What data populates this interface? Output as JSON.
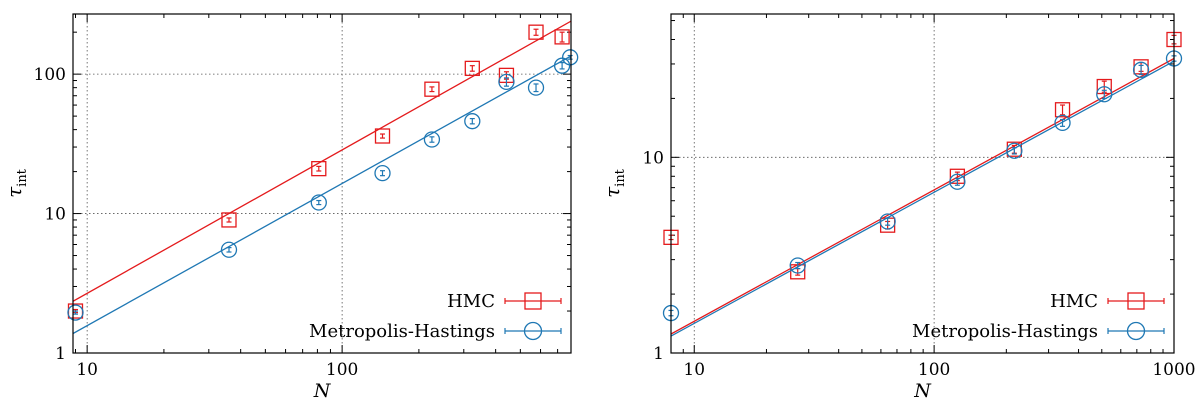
{
  "chart_data": [
    {
      "type": "scatter",
      "title": "",
      "xlabel": "N",
      "ylabel": "τ_int",
      "ylabel_main": "τ",
      "ylabel_sub": "int",
      "xscale": "log",
      "yscale": "log",
      "xlim": [
        8.8,
        790
      ],
      "ylim": [
        1,
        270
      ],
      "xticks": [
        10,
        100
      ],
      "xtick_labels": [
        "10",
        "100"
      ],
      "yticks": [
        1,
        10,
        100
      ],
      "ytick_labels": [
        "1",
        "10",
        "100"
      ],
      "grid": true,
      "legend_position": "bottom-right",
      "series": [
        {
          "name": "HMC",
          "color": "#e41a1c",
          "marker": "square",
          "x": [
            9,
            36,
            81,
            144,
            225,
            324,
            441,
            576,
            729
          ],
          "y": [
            2.0,
            9.0,
            21,
            36,
            78,
            110,
            98,
            200,
            185
          ],
          "err": [
            0.05,
            0.3,
            0.8,
            1.2,
            3,
            5,
            6,
            10,
            15
          ],
          "fit": {
            "x": [
              8.8,
              790
            ],
            "y": [
              2.35,
              240
            ]
          }
        },
        {
          "name": "Metropolis-Hastings",
          "color": "#1f78b4",
          "marker": "circle",
          "x": [
            9,
            36,
            81,
            144,
            225,
            324,
            441,
            576,
            729,
            784
          ],
          "y": [
            1.95,
            5.5,
            12,
            19.5,
            34,
            46,
            88,
            80,
            115,
            132
          ],
          "err": [
            0.05,
            0.2,
            0.4,
            0.8,
            1.5,
            2,
            6,
            5,
            6,
            4
          ],
          "fit": {
            "x": [
              8.8,
              790
            ],
            "y": [
              1.38,
              135
            ]
          }
        }
      ]
    },
    {
      "type": "scatter",
      "title": "",
      "xlabel": "N",
      "ylabel": "τ_int",
      "ylabel_main": "τ",
      "ylabel_sub": "int",
      "xscale": "log",
      "yscale": "log",
      "xlim": [
        8,
        1000
      ],
      "ylim": [
        1,
        54
      ],
      "xticks": [
        10,
        100,
        1000
      ],
      "xtick_labels": [
        "10",
        "100",
        "1000"
      ],
      "yticks": [
        1,
        10
      ],
      "ytick_labels": [
        "1",
        "10"
      ],
      "grid": true,
      "legend_position": "bottom-right",
      "series": [
        {
          "name": "HMC",
          "color": "#e41a1c",
          "marker": "square",
          "x": [
            8,
            27,
            64,
            125,
            216,
            343,
            512,
            729,
            1000
          ],
          "y": [
            3.9,
            2.6,
            4.5,
            8.0,
            11,
            17.5,
            23,
            29,
            40
          ],
          "err": [
            0.1,
            0.1,
            0.2,
            0.4,
            0.5,
            1.0,
            1.5,
            1.5,
            2
          ],
          "fit": {
            "x": [
              8,
              1000
            ],
            "y": [
              1.25,
              32
            ]
          }
        },
        {
          "name": "Metropolis-Hastings",
          "color": "#1f78b4",
          "marker": "circle",
          "x": [
            8,
            27,
            64,
            125,
            216,
            343,
            512,
            729,
            1000
          ],
          "y": [
            1.6,
            2.8,
            4.7,
            7.5,
            10.8,
            15,
            21,
            28,
            32
          ],
          "err": [
            0.05,
            0.1,
            0.2,
            0.3,
            0.4,
            0.6,
            1.0,
            1.5,
            1
          ],
          "fit": {
            "x": [
              8,
              1000
            ],
            "y": [
              1.22,
              31
            ]
          }
        }
      ]
    }
  ]
}
